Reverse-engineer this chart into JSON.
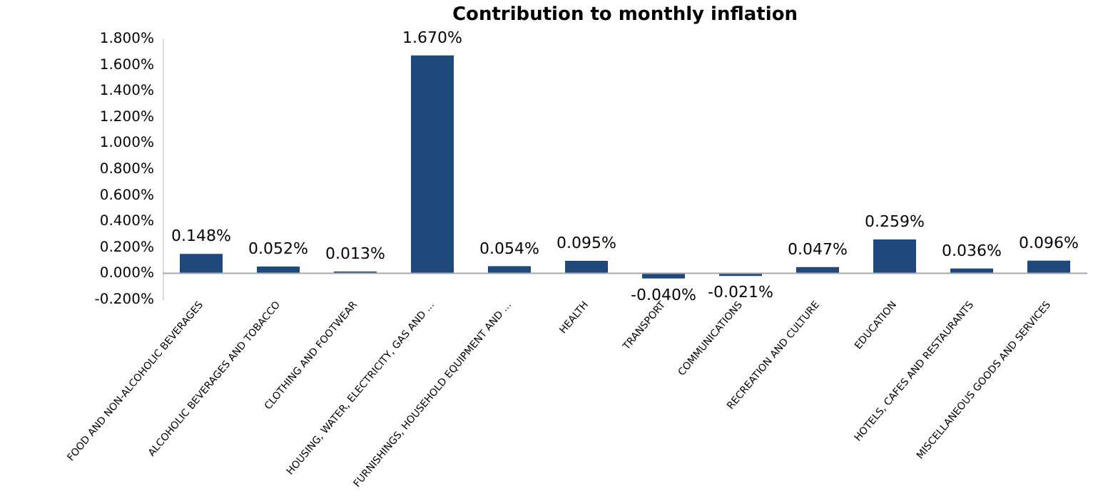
{
  "chart_data": {
    "type": "bar",
    "title": "Contribution to monthly inflation",
    "categories": [
      "FOOD AND NON-ALCOHOLIC BEVERAGES",
      "ALCOHOLIC BEVERAGES AND  TOBACCO",
      "CLOTHING AND FOOTWEAR",
      "HOUSING, WATER, ELECTRICITY, GAS AND ...",
      "FURNISHINGS, HOUSEHOLD EQUIPMENT AND ...",
      "HEALTH",
      "TRANSPORT",
      "COMMUNICATIONS",
      "RECREATION AND CULTURE",
      "EDUCATION",
      "HOTELS, CAFES AND RESTAURANTS",
      "MISCELLANEOUS GOODS AND SERVICES"
    ],
    "values": [
      0.148,
      0.052,
      0.013,
      1.67,
      0.054,
      0.095,
      -0.04,
      -0.021,
      0.047,
      0.259,
      0.036,
      0.096
    ],
    "value_labels": [
      "0.148%",
      "0.052%",
      "0.013%",
      "1.670%",
      "0.054%",
      "0.095%",
      "-0.040%",
      "-0.021%",
      "0.047%",
      "0.259%",
      "0.036%",
      "0.096%"
    ],
    "color": "#1f497d",
    "ylim": [
      -0.2,
      1.8
    ],
    "yticks": [
      {
        "value": -0.2,
        "label": "-0.200%"
      },
      {
        "value": 0,
        "label": "0.000%"
      },
      {
        "value": 0.2,
        "label": "0.200%"
      },
      {
        "value": 0.4,
        "label": "0.400%"
      },
      {
        "value": 0.6,
        "label": "0.600%"
      },
      {
        "value": 0.8,
        "label": "0.800%"
      },
      {
        "value": 1.0,
        "label": "1.000%"
      },
      {
        "value": 1.2,
        "label": "1.200%"
      },
      {
        "value": 1.4,
        "label": "1.400%"
      },
      {
        "value": 1.6,
        "label": "1.600%"
      },
      {
        "value": 1.8,
        "label": "1.800%"
      }
    ],
    "ref_lines": [
      {
        "axis": "y",
        "value": 0,
        "color": "#a6a6a6"
      }
    ]
  }
}
